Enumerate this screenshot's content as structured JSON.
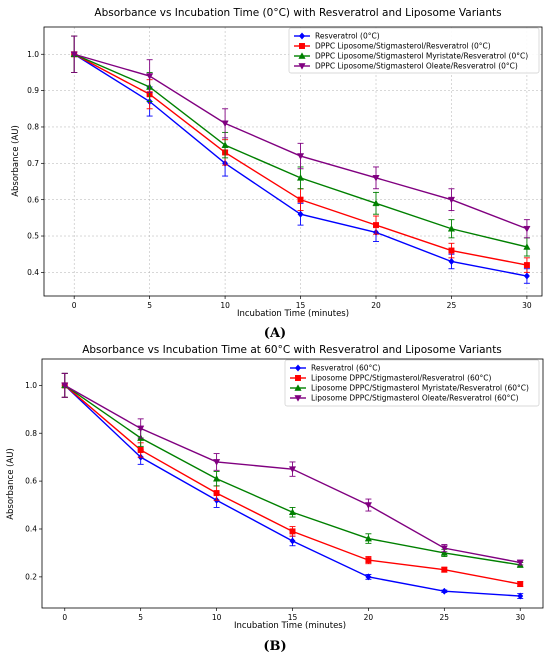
{
  "chart_data": [
    {
      "type": "line",
      "panel_label": "(A)",
      "title": "Absorbance vs Incubation Time (0°C) with Resveratrol and Liposome Variants",
      "xlabel": "Incubation Time (minutes)",
      "ylabel": "Absorbance (AU)",
      "x": [
        0,
        5,
        10,
        15,
        20,
        25,
        30
      ],
      "xlim": [
        -2,
        31
      ],
      "ylim": [
        0.335,
        1.075
      ],
      "xticks": [
        0,
        5,
        10,
        15,
        20,
        25,
        30
      ],
      "yticks": [
        0.4,
        0.5,
        0.6,
        0.7,
        0.8,
        0.9,
        1.0
      ],
      "yticklabels": [
        "0.4",
        "0.5",
        "0.6",
        "0.7",
        "0.8",
        "0.9",
        "1.0"
      ],
      "grid": true,
      "legend_position": "top-right",
      "series": [
        {
          "name": "Resveratrol (0°C)",
          "color": "#0000ff",
          "marker": "diamond",
          "values": [
            1.0,
            0.87,
            0.7,
            0.56,
            0.51,
            0.43,
            0.39
          ],
          "errors": [
            0.05,
            0.04,
            0.035,
            0.03,
            0.025,
            0.02,
            0.02
          ]
        },
        {
          "name": "DPPC Liposome/Stigmasterol/Resveratrol (0°C)",
          "color": "#ff0000",
          "marker": "square",
          "values": [
            1.0,
            0.89,
            0.73,
            0.6,
            0.53,
            0.46,
            0.42
          ],
          "errors": [
            0.05,
            0.04,
            0.035,
            0.03,
            0.025,
            0.02,
            0.02
          ]
        },
        {
          "name": "DPPC Liposome/Stigmasterol Myristate/Resveratrol (0°C)",
          "color": "#008000",
          "marker": "triangle",
          "values": [
            1.0,
            0.91,
            0.75,
            0.66,
            0.59,
            0.52,
            0.47
          ],
          "errors": [
            0.05,
            0.04,
            0.035,
            0.03,
            0.03,
            0.025,
            0.025
          ]
        },
        {
          "name": "DPPC Liposome/Stigmasterol Oleate/Resveratrol (0°C)",
          "color": "#800080",
          "marker": "triangle-down",
          "values": [
            1.0,
            0.94,
            0.81,
            0.72,
            0.66,
            0.6,
            0.52
          ],
          "errors": [
            0.05,
            0.045,
            0.04,
            0.035,
            0.03,
            0.03,
            0.025
          ]
        }
      ]
    },
    {
      "type": "line",
      "panel_label": "(B)",
      "title": "Absorbance vs Incubation Time at 60°C with Resveratrol and Liposome Variants",
      "xlabel": "Incubation Time (minutes)",
      "ylabel": "Absorbance (AU)",
      "x": [
        0,
        5,
        10,
        15,
        20,
        25,
        30
      ],
      "xlim": [
        -1.5,
        31.5
      ],
      "ylim": [
        0.07,
        1.11
      ],
      "xticks": [
        0,
        5,
        10,
        15,
        20,
        25,
        30
      ],
      "yticks": [
        0.2,
        0.4,
        0.6,
        0.8,
        1.0
      ],
      "yticklabels": [
        "0.2",
        "0.4",
        "0.6",
        "0.8",
        "1.0"
      ],
      "grid": false,
      "legend_position": "top-right",
      "series": [
        {
          "name": "Resveratrol (60°C)",
          "color": "#0000ff",
          "marker": "diamond",
          "values": [
            1.0,
            0.7,
            0.52,
            0.35,
            0.2,
            0.14,
            0.12
          ],
          "errors": [
            0.05,
            0.03,
            0.03,
            0.02,
            0.01,
            0.005,
            0.01
          ]
        },
        {
          "name": "Liposome DPPC/Stigmasterol/Resveratrol (60°C)",
          "color": "#ff0000",
          "marker": "square",
          "values": [
            1.0,
            0.73,
            0.55,
            0.39,
            0.27,
            0.23,
            0.17
          ],
          "errors": [
            0.05,
            0.03,
            0.03,
            0.02,
            0.015,
            0.01,
            0.01
          ]
        },
        {
          "name": "Liposome DPPC/Stigmasterol Myristate/Resveratrol (60°C)",
          "color": "#008000",
          "marker": "triangle",
          "values": [
            1.0,
            0.78,
            0.61,
            0.47,
            0.36,
            0.3,
            0.25
          ],
          "errors": [
            0.05,
            0.035,
            0.03,
            0.02,
            0.02,
            0.015,
            0.01
          ]
        },
        {
          "name": "Liposome DPPC/Stigmasterol Oleate/Resveratrol (60°C)",
          "color": "#800080",
          "marker": "triangle-down",
          "values": [
            1.0,
            0.82,
            0.68,
            0.65,
            0.5,
            0.32,
            0.26
          ],
          "errors": [
            0.05,
            0.04,
            0.035,
            0.03,
            0.025,
            0.015,
            0.01
          ]
        }
      ]
    }
  ]
}
